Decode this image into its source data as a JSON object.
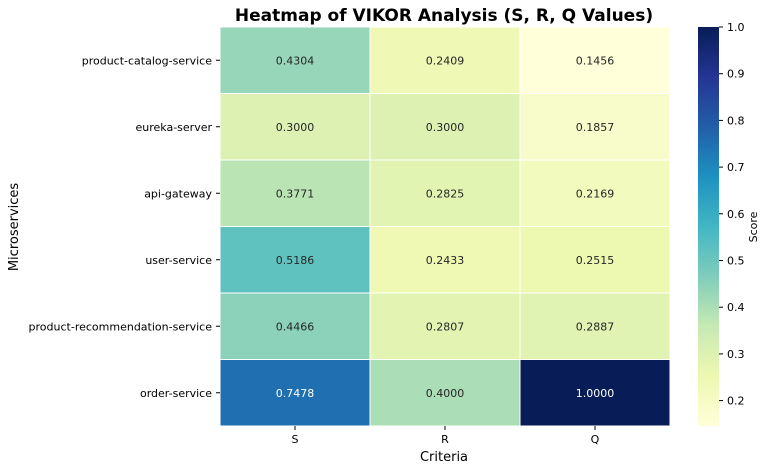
{
  "chart_data": {
    "type": "heatmap",
    "title": "Heatmap of VIKOR Analysis (S, R, Q Values)",
    "xlabel": "Criteria",
    "ylabel": "Microservices",
    "x_categories": [
      "S",
      "R",
      "Q"
    ],
    "y_categories": [
      "product-catalog-service",
      "eureka-server",
      "api-gateway",
      "user-service",
      "product-recommendation-service",
      "order-service"
    ],
    "values": [
      [
        0.4304,
        0.2409,
        0.1456
      ],
      [
        0.3,
        0.3,
        0.1857
      ],
      [
        0.3771,
        0.2825,
        0.2169
      ],
      [
        0.5186,
        0.2433,
        0.2515
      ],
      [
        0.4466,
        0.2807,
        0.2887
      ],
      [
        0.7478,
        0.4,
        1.0
      ]
    ],
    "value_labels": [
      [
        "0.4304",
        "0.2409",
        "0.1456"
      ],
      [
        "0.3000",
        "0.3000",
        "0.1857"
      ],
      [
        "0.3771",
        "0.2825",
        "0.2169"
      ],
      [
        "0.5186",
        "0.2433",
        "0.2515"
      ],
      [
        "0.4466",
        "0.2807",
        "0.2887"
      ],
      [
        "0.7478",
        "0.4000",
        "1.0000"
      ]
    ],
    "colormap": "YlGnBu",
    "colorbar": {
      "label": "Score",
      "range": [
        0.1456,
        1.0
      ],
      "ticks": [
        0.2,
        0.3,
        0.4,
        0.5,
        0.6,
        0.7,
        0.8,
        0.9,
        1.0
      ],
      "tick_labels": [
        "0.2",
        "0.3",
        "0.4",
        "0.5",
        "0.6",
        "0.7",
        "0.8",
        "0.9",
        "1.0"
      ]
    }
  }
}
